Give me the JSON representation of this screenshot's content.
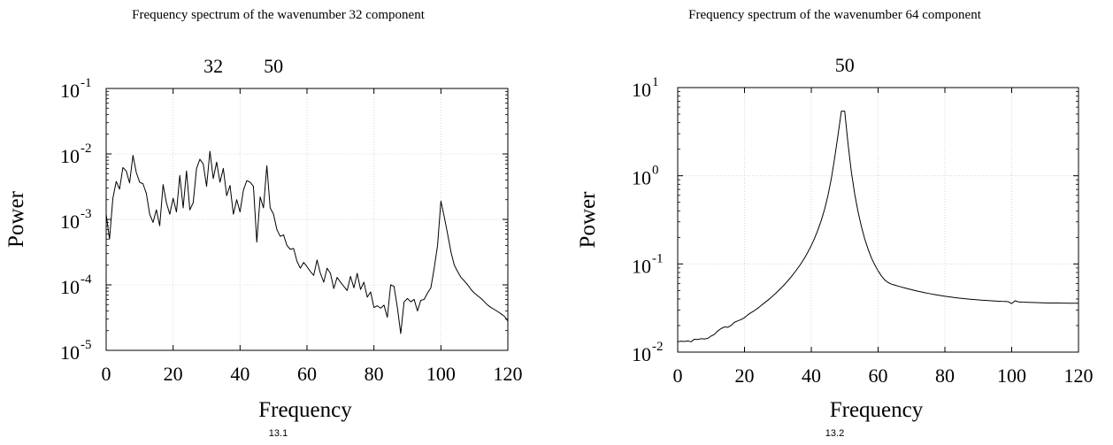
{
  "chart_data": [
    {
      "type": "line",
      "title": "Frequency spectrum of the wavenumber 32 component",
      "caption": "13.1",
      "xlabel": "Frequency",
      "ylabel": "Power",
      "xlim": [
        0,
        120
      ],
      "ylim": [
        1e-05,
        0.1
      ],
      "yscale": "log",
      "grid": true,
      "x_ticks": [
        0,
        20,
        40,
        60,
        80,
        100,
        120
      ],
      "y_ticks": [
        {
          "value": 1e-05,
          "base": "10",
          "exp": "-5"
        },
        {
          "value": 0.0001,
          "base": "10",
          "exp": "-4"
        },
        {
          "value": 0.001,
          "base": "10",
          "exp": "-3"
        },
        {
          "value": 0.01,
          "base": "10",
          "exp": "-2"
        },
        {
          "value": 0.1,
          "base": "10",
          "exp": "-1"
        }
      ],
      "annotations": [
        {
          "text": "32",
          "x": 32
        },
        {
          "text": "50",
          "x": 50
        }
      ],
      "x": [
        0,
        1,
        2,
        3,
        4,
        5,
        6,
        7,
        8,
        9,
        10,
        11,
        12,
        13,
        14,
        15,
        16,
        17,
        18,
        19,
        20,
        21,
        22,
        23,
        24,
        25,
        26,
        27,
        28,
        29,
        30,
        31,
        32,
        33,
        34,
        35,
        36,
        37,
        38,
        39,
        40,
        41,
        42,
        43,
        44,
        45,
        46,
        47,
        48,
        49,
        50,
        51,
        52,
        53,
        54,
        55,
        56,
        57,
        58,
        59,
        60,
        61,
        62,
        63,
        64,
        65,
        66,
        67,
        68,
        69,
        70,
        71,
        72,
        73,
        74,
        75,
        76,
        77,
        78,
        79,
        80,
        81,
        82,
        83,
        84,
        85,
        86,
        87,
        88,
        89,
        90,
        91,
        92,
        93,
        94,
        95,
        96,
        97,
        98,
        99,
        100,
        101,
        102,
        103,
        104,
        105,
        106,
        107,
        108,
        109,
        110,
        111,
        112,
        113,
        114,
        115,
        116,
        117,
        118,
        119,
        120
      ],
      "series": [
        {
          "values": [
            0.0012,
            0.0005,
            0.0021,
            0.0038,
            0.0029,
            0.0062,
            0.0055,
            0.0036,
            0.0095,
            0.0052,
            0.0037,
            0.0035,
            0.0025,
            0.0012,
            0.0009,
            0.0014,
            0.0008,
            0.0034,
            0.0018,
            0.0012,
            0.0021,
            0.0013,
            0.0047,
            0.0015,
            0.0055,
            0.0014,
            0.0018,
            0.006,
            0.0083,
            0.007,
            0.0032,
            0.011,
            0.0042,
            0.0075,
            0.0037,
            0.006,
            0.0023,
            0.0033,
            0.0012,
            0.002,
            0.0013,
            0.0028,
            0.0039,
            0.0037,
            0.0032,
            0.00045,
            0.0022,
            0.0015,
            0.0066,
            0.0015,
            0.0012,
            0.0007,
            0.00055,
            0.00058,
            0.0004,
            0.00035,
            0.00036,
            0.00023,
            0.00018,
            0.00022,
            0.00019,
            0.00016,
            0.00014,
            0.00024,
            0.00015,
            0.00011,
            0.00018,
            0.00015,
            8.8e-05,
            0.00013,
            0.00011,
            9.5e-05,
            8.2e-05,
            0.000135,
            9e-05,
            0.00015,
            8.5e-05,
            0.00011,
            6.5e-05,
            7.8e-05,
            4.5e-05,
            4.8e-05,
            4.4e-05,
            4.9e-05,
            3.2e-05,
            0.0001,
            9.5e-05,
            4.5e-05,
            1.8e-05,
            5.5e-05,
            6.2e-05,
            5.5e-05,
            6e-05,
            4e-05,
            5.8e-05,
            6e-05,
            7.5e-05,
            9e-05,
            0.00018,
            0.0004,
            0.0019,
            0.0011,
            0.0006,
            0.00032,
            0.0002,
            0.00016,
            0.00013,
            0.000115,
            0.0001,
            8.5e-05,
            7.5e-05,
            6.8e-05,
            6.2e-05,
            5.5e-05,
            4.9e-05,
            4.5e-05,
            4.2e-05,
            3.9e-05,
            3.6e-05,
            3.3e-05,
            2.8e-05
          ]
        }
      ]
    },
    {
      "type": "line",
      "title": "Frequency spectrum of the wavenumber 64 component",
      "caption": "13.2",
      "xlabel": "Frequency",
      "ylabel": "Power",
      "xlim": [
        0,
        120
      ],
      "ylim": [
        0.01,
        10.0
      ],
      "yscale": "log",
      "grid": true,
      "x_ticks": [
        0,
        20,
        40,
        60,
        80,
        100,
        120
      ],
      "y_ticks": [
        {
          "value": 0.01,
          "base": "10",
          "exp": "-2"
        },
        {
          "value": 0.1,
          "base": "10",
          "exp": "-1"
        },
        {
          "value": 1.0,
          "base": "10",
          "exp": "0"
        },
        {
          "value": 10.0,
          "base": "10",
          "exp": "1"
        }
      ],
      "annotations": [
        {
          "text": "50",
          "x": 50
        }
      ],
      "x": [
        0,
        1,
        2,
        3,
        4,
        5,
        6,
        7,
        8,
        9,
        10,
        11,
        12,
        13,
        14,
        15,
        16,
        17,
        18,
        19,
        20,
        21,
        22,
        23,
        24,
        25,
        26,
        27,
        28,
        29,
        30,
        31,
        32,
        33,
        34,
        35,
        36,
        37,
        38,
        39,
        40,
        41,
        42,
        43,
        44,
        45,
        46,
        47,
        48,
        49,
        50,
        51,
        52,
        53,
        54,
        55,
        56,
        57,
        58,
        59,
        60,
        61,
        62,
        63,
        64,
        65,
        66,
        67,
        68,
        69,
        70,
        71,
        72,
        73,
        74,
        75,
        76,
        77,
        78,
        79,
        80,
        81,
        82,
        83,
        84,
        85,
        86,
        87,
        88,
        89,
        90,
        91,
        92,
        93,
        94,
        95,
        96,
        97,
        98,
        99,
        100,
        101,
        102,
        103,
        104,
        105,
        106,
        107,
        108,
        109,
        110,
        111,
        112,
        113,
        114,
        115,
        116,
        117,
        118,
        119,
        120
      ],
      "series": [
        {
          "values": [
            0.0131,
            0.0133,
            0.0132,
            0.0134,
            0.0131,
            0.014,
            0.0139,
            0.0142,
            0.0141,
            0.0143,
            0.0152,
            0.0159,
            0.0174,
            0.0185,
            0.0193,
            0.0191,
            0.0201,
            0.0218,
            0.0226,
            0.0234,
            0.0246,
            0.0265,
            0.0281,
            0.0296,
            0.0315,
            0.0338,
            0.0362,
            0.0388,
            0.0418,
            0.0452,
            0.0491,
            0.0535,
            0.0586,
            0.0646,
            0.0716,
            0.08,
            0.09,
            0.102,
            0.117,
            0.137,
            0.162,
            0.196,
            0.244,
            0.313,
            0.42,
            0.6,
            0.93,
            1.6,
            2.9,
            5.4,
            5.4,
            2.3,
            1.1,
            0.62,
            0.39,
            0.265,
            0.192,
            0.147,
            0.117,
            0.0975,
            0.0834,
            0.073,
            0.0658,
            0.0615,
            0.059,
            0.0575,
            0.056,
            0.0547,
            0.0534,
            0.0522,
            0.0511,
            0.05,
            0.049,
            0.0481,
            0.0472,
            0.0464,
            0.0456,
            0.0449,
            0.0442,
            0.0436,
            0.043,
            0.0425,
            0.042,
            0.0415,
            0.0411,
            0.0407,
            0.0403,
            0.04,
            0.0397,
            0.0394,
            0.0391,
            0.0388,
            0.0386,
            0.0384,
            0.0382,
            0.038,
            0.0378,
            0.0376,
            0.0375,
            0.0373,
            0.0355,
            0.0382,
            0.0371,
            0.0369,
            0.0368,
            0.0367,
            0.0366,
            0.0365,
            0.0364,
            0.0363,
            0.0362,
            0.0361,
            0.0361,
            0.036,
            0.036,
            0.0359,
            0.0359,
            0.0358,
            0.0358,
            0.0358,
            0.0358
          ]
        }
      ]
    }
  ]
}
